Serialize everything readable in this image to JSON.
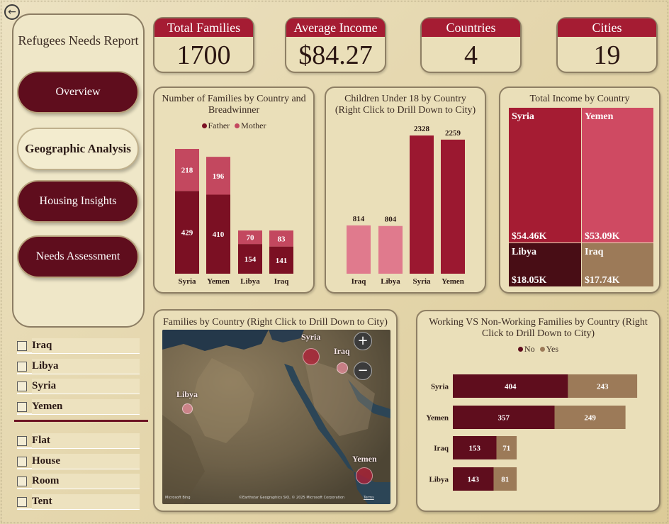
{
  "nav": {
    "back_icon": "arrow-left-circle-icon",
    "title": "Refugees Needs Report",
    "buttons": [
      "Overview",
      "Geographic Analysis",
      "Housing Insights",
      "Needs Assessment"
    ],
    "active": "Geographic Analysis"
  },
  "kpis": [
    {
      "label": "Total Families",
      "value": "1700"
    },
    {
      "label": "Average Income",
      "value": "$84.27"
    },
    {
      "label": "Countries",
      "value": "4"
    },
    {
      "label": "Cities",
      "value": "19"
    }
  ],
  "slicers": {
    "countries": [
      "Iraq",
      "Libya",
      "Syria",
      "Yemen"
    ],
    "housing": [
      "Flat",
      "House",
      "Room",
      "Tent"
    ]
  },
  "colors": {
    "dark_red": "#7b1023",
    "crimson": "#9b1830",
    "rose": "#c3485f",
    "pink": "#e07a8d",
    "tan": "#9c7a58",
    "maroon": "#480d15"
  },
  "chart_data": [
    {
      "type": "bar",
      "stacked": true,
      "title": "Number of Families by Country and Breadwinner",
      "categories": [
        "Syria",
        "Yemen",
        "Libya",
        "Iraq"
      ],
      "series": [
        {
          "name": "Father",
          "values": [
            429,
            410,
            154,
            141
          ],
          "color": "#7b1023"
        },
        {
          "name": "Mother",
          "values": [
            218,
            196,
            70,
            83
          ],
          "color": "#c3485f"
        }
      ],
      "legend": "top"
    },
    {
      "type": "bar",
      "title": "Children Under 18 by Country (Right Click to Drill Down to City)",
      "categories": [
        "Iraq",
        "Libya",
        "Syria",
        "Yemen"
      ],
      "values": [
        814,
        804,
        2328,
        2259
      ],
      "colors": [
        "#e07a8d",
        "#e07a8d",
        "#9b1830",
        "#9b1830"
      ]
    },
    {
      "type": "treemap",
      "title": "Total Income by Country",
      "items": [
        {
          "label": "Syria",
          "value": "$54.46K",
          "color": "#a51c33"
        },
        {
          "label": "Yemen",
          "value": "$53.09K",
          "color": "#cf4a62"
        },
        {
          "label": "Libya",
          "value": "$18.05K",
          "color": "#480d15"
        },
        {
          "label": "Iraq",
          "value": "$17.74K",
          "color": "#9c7a58"
        }
      ]
    },
    {
      "type": "map",
      "title": "Families by Country (Right Click to Drill Down to City)",
      "points": [
        {
          "label": "Syria"
        },
        {
          "label": "Iraq"
        },
        {
          "label": "Libya"
        },
        {
          "label": "Yemen"
        }
      ],
      "footer": "Microsoft Bing",
      "attribution": "©Earthstar Geographics SIO, © 2025 Microsoft Corporation",
      "terms": "Terms"
    },
    {
      "type": "bar",
      "orientation": "horizontal",
      "stacked": true,
      "title": "Working VS Non-Working Families by Country (Right Click to Drill Down to City)",
      "categories": [
        "Syria",
        "Yemen",
        "Iraq",
        "Libya"
      ],
      "series": [
        {
          "name": "No",
          "values": [
            404,
            357,
            153,
            143
          ],
          "color": "#5f0d1d"
        },
        {
          "name": "Yes",
          "values": [
            243,
            249,
            71,
            81
          ],
          "color": "#9c7a58"
        }
      ],
      "legend": "top"
    }
  ]
}
